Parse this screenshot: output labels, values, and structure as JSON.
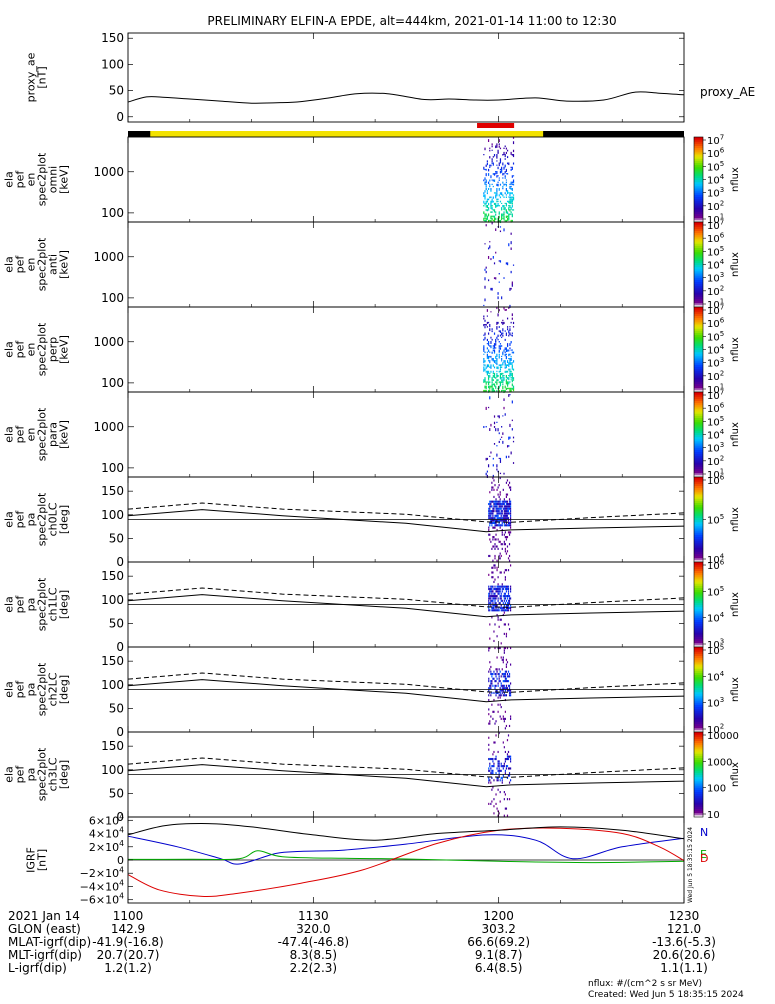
{
  "title": "PRELIMINARY ELFIN-A EPDE, alt=444km, 2021-01-14 11:00 to 12:30",
  "chart_data": {
    "type": "line",
    "time_range": [
      "11:00",
      "12:30"
    ],
    "panels": [
      {
        "id": "proxy_ae",
        "ylabel": [
          "proxy_ae",
          "[nT]"
        ],
        "yticks": [
          "150",
          "100",
          "50",
          "0"
        ],
        "ylim": [
          -10,
          160
        ],
        "legend": "proxy_AE",
        "series": [
          {
            "name": "proxy_AE",
            "x_min": [
              0,
              3,
              6,
              10,
              15,
              20,
              25,
              28,
              32,
              37,
              42,
              48,
              52,
              56,
              60,
              66,
              71,
              77,
              82,
              86,
              90
            ],
            "values": [
              28,
              38,
              37,
              34,
              30,
              26,
              27,
              29,
              35,
              44,
              44,
              33,
              34,
              32,
              32,
              36,
              30,
              32,
              47,
              45,
              42
            ]
          }
        ]
      },
      {
        "id": "spec_omni",
        "ylabel": [
          "ela",
          "pef",
          "en",
          "spec2plot",
          "omni",
          "[keV]"
        ],
        "yticks": [
          "1000",
          "100"
        ],
        "ylim": [
          60,
          7000
        ],
        "log": true,
        "colorbar": {
          "label": "nflux",
          "ticks": [
            "10^1",
            "10^2",
            "10^3",
            "10^4",
            "10^5",
            "10^6",
            "10^7"
          ]
        }
      },
      {
        "id": "spec_anti",
        "ylabel": [
          "ela",
          "pef",
          "en",
          "spec2plot",
          "anti",
          "[keV]"
        ],
        "yticks": [
          "1000",
          "100"
        ],
        "ylim": [
          60,
          7000
        ],
        "log": true,
        "colorbar": {
          "label": "nflux",
          "ticks": [
            "10^1",
            "10^2",
            "10^3",
            "10^4",
            "10^5",
            "10^6",
            "10^7"
          ]
        }
      },
      {
        "id": "spec_perp",
        "ylabel": [
          "ela",
          "pef",
          "en",
          "spec2plot",
          "perp",
          "[keV]"
        ],
        "yticks": [
          "1000",
          "100"
        ],
        "ylim": [
          60,
          7000
        ],
        "log": true,
        "colorbar": {
          "label": "nflux",
          "ticks": [
            "10^1",
            "10^2",
            "10^3",
            "10^4",
            "10^5",
            "10^6",
            "10^7"
          ]
        }
      },
      {
        "id": "spec_para",
        "ylabel": [
          "ela",
          "pef",
          "en",
          "spec2plot",
          "para",
          "[keV]"
        ],
        "yticks": [
          "1000",
          "100"
        ],
        "ylim": [
          60,
          7000
        ],
        "log": true,
        "colorbar": {
          "label": "nflux",
          "ticks": [
            "10^1",
            "10^2",
            "10^3",
            "10^4",
            "10^5",
            "10^6",
            "10^7"
          ]
        }
      },
      {
        "id": "pa_ch0",
        "ylabel": [
          "ela",
          "pef",
          "pa",
          "spec2plot",
          "ch0LC",
          "[deg]"
        ],
        "yticks": [
          "150",
          "100",
          "50",
          "0"
        ],
        "ylim": [
          0,
          180
        ],
        "colorbar": {
          "label": "nflux",
          "ticks": [
            "10^4",
            "10^5",
            "10^6"
          ]
        }
      },
      {
        "id": "pa_ch1",
        "ylabel": [
          "ela",
          "pef",
          "pa",
          "spec2plot",
          "ch1LC",
          "[deg]"
        ],
        "yticks": [
          "150",
          "100",
          "50",
          "0"
        ],
        "ylim": [
          0,
          180
        ],
        "colorbar": {
          "label": "nflux",
          "ticks": [
            "10^3",
            "10^4",
            "10^5",
            "10^6"
          ]
        }
      },
      {
        "id": "pa_ch2",
        "ylabel": [
          "ela",
          "pef",
          "pa",
          "spec2plot",
          "ch2LC",
          "[deg]"
        ],
        "yticks": [
          "150",
          "100",
          "50",
          "0"
        ],
        "ylim": [
          0,
          180
        ],
        "colorbar": {
          "label": "nflux",
          "ticks": [
            "10^2",
            "10^3",
            "10^4",
            "10^5"
          ]
        }
      },
      {
        "id": "pa_ch3",
        "ylabel": [
          "ela",
          "pef",
          "pa",
          "spec2plot",
          "ch3LC",
          "[deg]"
        ],
        "yticks": [
          "150",
          "100",
          "50",
          "0"
        ],
        "ylim": [
          0,
          180
        ],
        "colorbar": {
          "label": "nflux",
          "ticks": [
            "10",
            "100",
            "1000",
            "10000"
          ]
        }
      },
      {
        "id": "igrf",
        "ylabel": [
          "IGRF",
          "[nT]"
        ],
        "yticks": [
          "6×10^4",
          "4×10^4",
          "2×10^4",
          "0",
          "−2×10^4",
          "−4×10^4",
          "−6×10^4"
        ],
        "ylim": [
          -65000,
          65000
        ],
        "legend": [
          "N",
          "E",
          "D"
        ],
        "series": [
          {
            "name": "N",
            "color": "#0000cc",
            "x_min": [
              0,
              8,
              15,
              18,
              24,
              28,
              35,
              45,
              58,
              66,
              72,
              80,
              90
            ],
            "values": [
              36000,
              20000,
              2000,
              -6000,
              10000,
              13000,
              15000,
              24000,
              38000,
              30000,
              2000,
              20000,
              33000
            ]
          },
          {
            "name": "E",
            "color": "#00aa00",
            "x_min": [
              0,
              10,
              18,
              21,
              25,
              35,
              45,
              60,
              75,
              90
            ],
            "values": [
              1000,
              1000,
              2000,
              14000,
              5000,
              2500,
              1500,
              -2000,
              -4000,
              -2000
            ]
          },
          {
            "name": "D",
            "color": "#dd0000",
            "x_min": [
              0,
              5,
              12,
              18,
              28,
              38,
              50,
              60,
              70,
              80,
              86,
              90
            ],
            "values": [
              -22000,
              -45000,
              -55000,
              -50000,
              -35000,
              -15000,
              25000,
              45000,
              48000,
              40000,
              20000,
              -1000
            ]
          },
          {
            "name": "total",
            "color": "#000000",
            "x_min": [
              0,
              6,
              13,
              20,
              30,
              40,
              50,
              60,
              70,
              80,
              90
            ],
            "values": [
              38000,
              52000,
              55000,
              50000,
              38000,
              30000,
              40000,
              45000,
              50000,
              45000,
              32000
            ]
          }
        ]
      }
    ],
    "annotations": {
      "science_zone_bar": "black/yellow",
      "red_marker": "11:58-12:02"
    }
  },
  "ephemeris": {
    "row_labels": [
      "2021 Jan 14",
      "GLON (east)",
      "MLAT-igrf(dip)",
      "MLT-igrf(dip)",
      "L-igrf(dip)"
    ],
    "columns": [
      {
        "time": "1100",
        "glon": "142.9",
        "mlat": "-41.9(-16.8)",
        "mlt": "20.7(20.7)",
        "l": "1.2(1.2)"
      },
      {
        "time": "1130",
        "glon": "320.0",
        "mlat": "-47.4(-46.8)",
        "mlt": "8.3(8.5)",
        "l": "2.2(2.3)"
      },
      {
        "time": "1200",
        "glon": "303.2",
        "mlat": "66.6(69.2)",
        "mlt": "9.1(8.7)",
        "l": "6.4(8.5)"
      },
      {
        "time": "1230",
        "glon": "121.0",
        "mlat": "-13.6(-5.3)",
        "mlt": "20.6(20.6)",
        "l": "1.1(1.1)"
      }
    ]
  },
  "footer": {
    "units": "nflux: #/(cm^2 s sr MeV)",
    "created": "Created: Wed Jun  5 18:35:15 2024",
    "side_stamp": "Wed Jun  5 18:35:15 2024"
  }
}
